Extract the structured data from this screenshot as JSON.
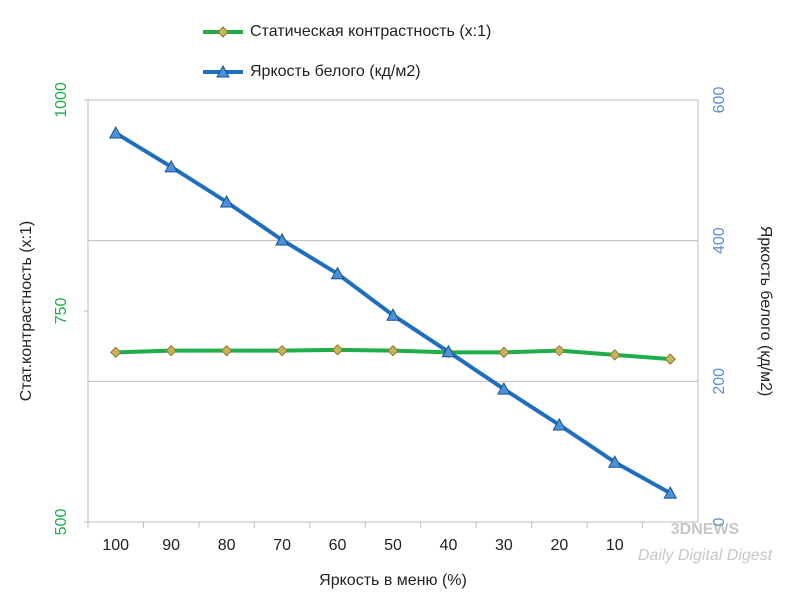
{
  "chart_data": {
    "type": "line",
    "x_label": "Яркость в меню (%)",
    "y_label": "Стат.контрастность  (x:1)",
    "y2_label": "Яркость белого (кд/м2)",
    "categories": [
      "100",
      "90",
      "80",
      "70",
      "60",
      "50",
      "40",
      "30",
      "20",
      "10",
      null
    ],
    "series": [
      {
        "name": "Статическая контрастность (x:1)",
        "color": "#1fae4a",
        "marker_color": "#c8b25a",
        "values": [
          701,
          703,
          703,
          703,
          704,
          703,
          701,
          701,
          703,
          698,
          693
        ]
      },
      {
        "name": "Яркость белого (кд/м2)",
        "color": "#1f6fc0",
        "marker_color": "#4a92dc",
        "axis": "y2",
        "values": [
          553,
          505,
          455,
          401,
          353,
          294,
          242,
          189,
          138,
          85,
          41
        ]
      }
    ],
    "ylim": [
      500,
      1000
    ],
    "yticks": [
      500,
      750,
      1000
    ],
    "y_tick_color": "#1fae4a",
    "y2lim": [
      0,
      600
    ],
    "y2ticks": [
      0,
      200,
      400,
      600
    ],
    "y2_tick_color": "#5b8fd4",
    "grid": true,
    "legend": "top"
  },
  "watermark": {
    "logo": "3DNEWS",
    "tagline": "Daily Digital Digest"
  }
}
